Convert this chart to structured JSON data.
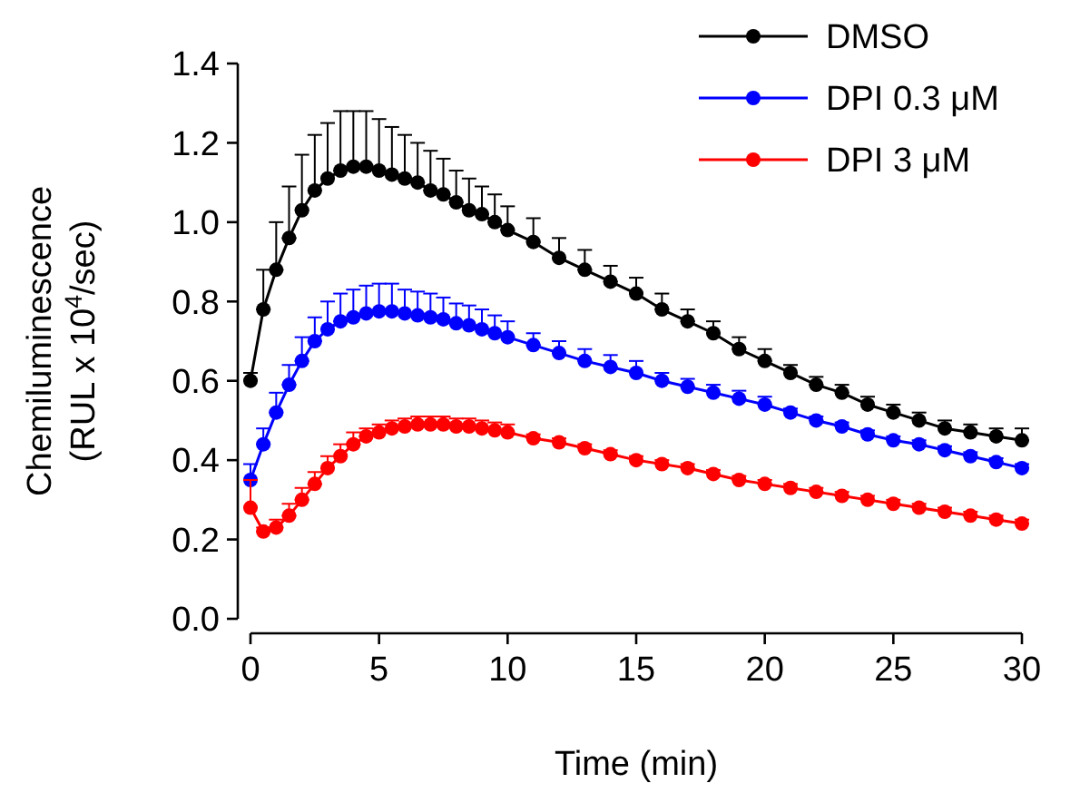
{
  "chart_data": {
    "type": "line",
    "xlabel": "Time (min)",
    "ylabel": "Chemiluminescence\n(RUL x 10$^{4}$/sec)",
    "x": [
      0,
      0.5,
      1,
      1.5,
      2,
      2.5,
      3,
      3.5,
      4,
      4.5,
      5,
      5.5,
      6,
      6.5,
      7,
      7.5,
      8,
      8.5,
      9,
      9.5,
      10,
      11,
      12,
      13,
      14,
      15,
      16,
      17,
      18,
      19,
      20,
      21,
      22,
      23,
      24,
      25,
      26,
      27,
      28,
      29,
      30
    ],
    "xlim": [
      0,
      30
    ],
    "xticks": [
      0,
      5,
      10,
      15,
      20,
      25,
      30
    ],
    "ylim": [
      0,
      1.4
    ],
    "yticks": [
      {
        "value": 0,
        "label": "0.0"
      },
      0.2,
      0.4,
      0.6,
      0.8,
      {
        "value": 1,
        "label": "1.0"
      },
      1.2,
      1.4
    ],
    "marker": "circle",
    "line_style": "solid",
    "legend": "top right",
    "grid": false,
    "series": [
      {
        "name": "DMSO",
        "color": "#000000",
        "values": [
          0.6,
          0.78,
          0.88,
          0.96,
          1.03,
          1.08,
          1.11,
          1.13,
          1.14,
          1.14,
          1.13,
          1.12,
          1.11,
          1.1,
          1.08,
          1.07,
          1.05,
          1.03,
          1.02,
          1.0,
          0.98,
          0.95,
          0.91,
          0.88,
          0.85,
          0.82,
          0.78,
          0.75,
          0.72,
          0.68,
          0.65,
          0.62,
          0.59,
          0.57,
          0.54,
          0.52,
          0.5,
          0.48,
          0.47,
          0.46,
          0.45
        ],
        "errors": [
          [
            0.6,
            0.62
          ],
          [
            0.78,
            0.88
          ],
          [
            0.88,
            1.0
          ],
          [
            0.96,
            1.09
          ],
          [
            1.03,
            1.17
          ],
          [
            1.08,
            1.22
          ],
          [
            1.11,
            1.25
          ],
          [
            1.13,
            1.28
          ],
          [
            1.14,
            1.28
          ],
          [
            1.14,
            1.28
          ],
          [
            1.13,
            1.26
          ],
          [
            1.12,
            1.24
          ],
          [
            1.11,
            1.22
          ],
          [
            1.1,
            1.2
          ],
          [
            1.08,
            1.18
          ],
          [
            1.07,
            1.16
          ],
          [
            1.05,
            1.13
          ],
          [
            1.03,
            1.11
          ],
          [
            1.02,
            1.09
          ],
          [
            1.0,
            1.07
          ],
          [
            0.98,
            1.04
          ],
          [
            0.95,
            1.01
          ],
          [
            0.91,
            0.96
          ],
          [
            0.88,
            0.93
          ],
          [
            0.85,
            0.89
          ],
          [
            0.82,
            0.86
          ],
          [
            0.78,
            0.82
          ],
          [
            0.75,
            0.78
          ],
          [
            0.72,
            0.75
          ],
          [
            0.68,
            0.71
          ],
          [
            0.65,
            0.68
          ],
          [
            0.62,
            0.64
          ],
          [
            0.59,
            0.61
          ],
          [
            0.57,
            0.59
          ],
          [
            0.54,
            0.56
          ],
          [
            0.52,
            0.54
          ],
          [
            0.5,
            0.52
          ],
          [
            0.48,
            0.5
          ],
          [
            0.47,
            0.49
          ],
          [
            0.46,
            0.48
          ],
          [
            0.45,
            0.48
          ]
        ]
      },
      {
        "name": "DPI 0.3 μM",
        "color": "#0000ff",
        "values": [
          0.35,
          0.44,
          0.52,
          0.59,
          0.65,
          0.7,
          0.73,
          0.75,
          0.76,
          0.77,
          0.775,
          0.775,
          0.77,
          0.765,
          0.76,
          0.755,
          0.745,
          0.74,
          0.73,
          0.72,
          0.71,
          0.69,
          0.67,
          0.65,
          0.635,
          0.62,
          0.6,
          0.585,
          0.57,
          0.555,
          0.54,
          0.52,
          0.5,
          0.485,
          0.465,
          0.45,
          0.44,
          0.425,
          0.41,
          0.395,
          0.38
        ],
        "errors": [
          [
            0.35,
            0.39
          ],
          [
            0.44,
            0.48
          ],
          [
            0.52,
            0.57
          ],
          [
            0.59,
            0.64
          ],
          [
            0.65,
            0.71
          ],
          [
            0.7,
            0.76
          ],
          [
            0.73,
            0.8
          ],
          [
            0.75,
            0.82
          ],
          [
            0.76,
            0.83
          ],
          [
            0.77,
            0.84
          ],
          [
            0.775,
            0.845
          ],
          [
            0.775,
            0.845
          ],
          [
            0.77,
            0.83
          ],
          [
            0.765,
            0.825
          ],
          [
            0.76,
            0.82
          ],
          [
            0.755,
            0.81
          ],
          [
            0.745,
            0.795
          ],
          [
            0.74,
            0.79
          ],
          [
            0.73,
            0.78
          ],
          [
            0.72,
            0.765
          ],
          [
            0.71,
            0.75
          ],
          [
            0.69,
            0.72
          ],
          [
            0.67,
            0.7
          ],
          [
            0.65,
            0.68
          ],
          [
            0.635,
            0.665
          ],
          [
            0.62,
            0.65
          ],
          [
            0.6,
            0.62
          ],
          [
            0.585,
            0.605
          ],
          [
            0.57,
            0.59
          ],
          [
            0.555,
            0.575
          ],
          [
            0.54,
            0.56
          ],
          [
            0.52,
            0.53
          ],
          [
            0.5,
            0.51
          ],
          [
            0.485,
            0.495
          ],
          [
            0.465,
            0.475
          ],
          [
            0.45,
            0.46
          ],
          [
            0.44,
            0.45
          ],
          [
            0.425,
            0.435
          ],
          [
            0.41,
            0.42
          ],
          [
            0.395,
            0.405
          ],
          [
            0.38,
            0.39
          ]
        ]
      },
      {
        "name": "DPI 3 μM",
        "color": "#ff0000",
        "values": [
          0.28,
          0.22,
          0.23,
          0.26,
          0.3,
          0.34,
          0.38,
          0.41,
          0.44,
          0.46,
          0.47,
          0.48,
          0.485,
          0.49,
          0.49,
          0.49,
          0.485,
          0.485,
          0.48,
          0.475,
          0.47,
          0.455,
          0.445,
          0.43,
          0.415,
          0.4,
          0.39,
          0.38,
          0.365,
          0.35,
          0.34,
          0.33,
          0.32,
          0.31,
          0.3,
          0.29,
          0.28,
          0.27,
          0.26,
          0.25,
          0.24
        ],
        "errors": [
          [
            0.28,
            0.35
          ],
          [
            0.22,
            0.23
          ],
          [
            0.23,
            0.25
          ],
          [
            0.26,
            0.29
          ],
          [
            0.3,
            0.33
          ],
          [
            0.34,
            0.37
          ],
          [
            0.38,
            0.41
          ],
          [
            0.41,
            0.44
          ],
          [
            0.44,
            0.47
          ],
          [
            0.46,
            0.48
          ],
          [
            0.47,
            0.49
          ],
          [
            0.48,
            0.5
          ],
          [
            0.485,
            0.505
          ],
          [
            0.49,
            0.51
          ],
          [
            0.49,
            0.51
          ],
          [
            0.49,
            0.51
          ],
          [
            0.485,
            0.505
          ],
          [
            0.485,
            0.505
          ],
          [
            0.48,
            0.5
          ],
          [
            0.475,
            0.495
          ],
          [
            0.47,
            0.49
          ],
          [
            0.455,
            0.465
          ],
          [
            0.445,
            0.455
          ],
          [
            0.43,
            0.44
          ],
          [
            0.415,
            0.425
          ],
          [
            0.4,
            0.41
          ],
          [
            0.39,
            0.4
          ],
          [
            0.38,
            0.39
          ],
          [
            0.365,
            0.375
          ],
          [
            0.35,
            0.36
          ],
          [
            0.34,
            0.35
          ],
          [
            0.33,
            0.34
          ],
          [
            0.32,
            0.33
          ],
          [
            0.31,
            0.32
          ],
          [
            0.3,
            0.31
          ],
          [
            0.29,
            0.3
          ],
          [
            0.28,
            0.29
          ],
          [
            0.27,
            0.28
          ],
          [
            0.26,
            0.27
          ],
          [
            0.25,
            0.26
          ],
          [
            0.24,
            0.25
          ]
        ]
      }
    ]
  }
}
